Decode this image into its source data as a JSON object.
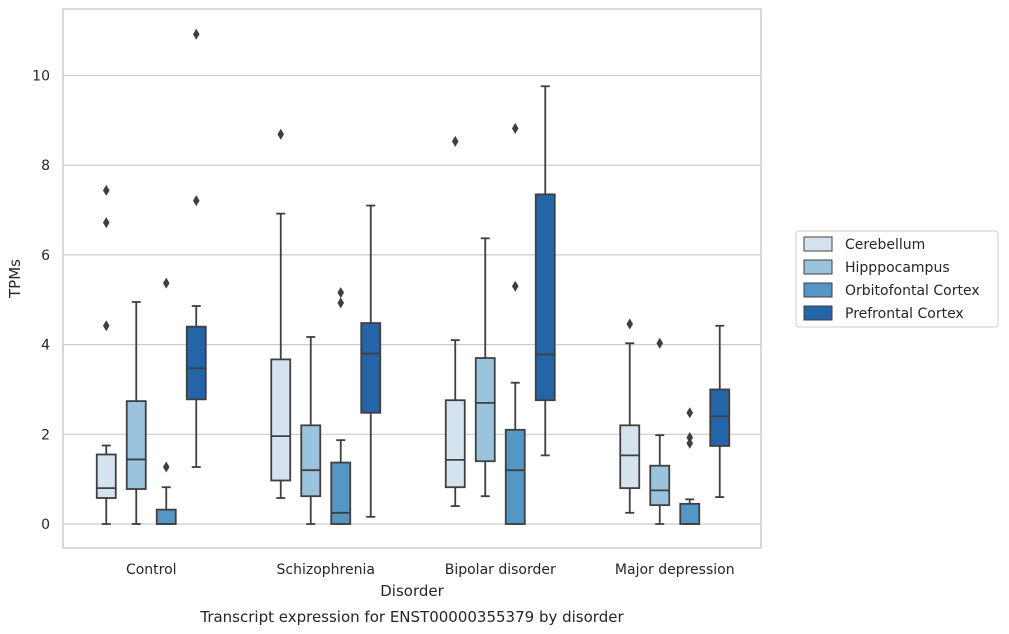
{
  "chart_data": {
    "type": "boxplot",
    "title": "Transcript expression for ENST00000355379 by disorder",
    "xlabel": "Disorder",
    "ylabel": "TPMs",
    "ylim": [
      -0.55,
      11.45
    ],
    "yticks": [
      0,
      2,
      4,
      6,
      8,
      10
    ],
    "grid": "horizontal",
    "legend_position": "center-right",
    "categories": [
      "Control",
      "Schizophrenia",
      "Bipolar disorder",
      "Major depression"
    ],
    "series": [
      {
        "name": "Cerebellum",
        "color": "#d5e3f1",
        "boxes": [
          {
            "whislo": 0.0,
            "q1": 0.58,
            "med": 0.8,
            "q3": 1.55,
            "whishi": 1.75,
            "fliers": [
              4.42,
              6.72,
              7.44
            ]
          },
          {
            "whislo": 0.58,
            "q1": 0.97,
            "med": 1.96,
            "q3": 3.67,
            "whishi": 6.92,
            "fliers": [
              8.69
            ]
          },
          {
            "whislo": 0.4,
            "q1": 0.82,
            "med": 1.43,
            "q3": 2.76,
            "whishi": 4.1,
            "fliers": [
              8.53
            ]
          },
          {
            "whislo": 0.25,
            "q1": 0.8,
            "med": 1.53,
            "q3": 2.2,
            "whishi": 4.03,
            "fliers": [
              4.46
            ]
          }
        ]
      },
      {
        "name": "Hipppocampus",
        "color": "#9ac3dd",
        "boxes": [
          {
            "whislo": 0.0,
            "q1": 0.78,
            "med": 1.44,
            "q3": 2.74,
            "whishi": 4.95,
            "fliers": []
          },
          {
            "whislo": 0.0,
            "q1": 0.62,
            "med": 1.2,
            "q3": 2.2,
            "whishi": 4.17,
            "fliers": []
          },
          {
            "whislo": 0.62,
            "q1": 1.4,
            "med": 2.7,
            "q3": 3.7,
            "whishi": 6.37,
            "fliers": []
          },
          {
            "whislo": 0.0,
            "q1": 0.42,
            "med": 0.75,
            "q3": 1.3,
            "whishi": 1.98,
            "fliers": [
              4.03
            ]
          }
        ]
      },
      {
        "name": "Orbitofontal Cortex",
        "color": "#5497c5",
        "boxes": [
          {
            "whislo": 0.0,
            "q1": 0.0,
            "med": 0.0,
            "q3": 0.32,
            "whishi": 0.82,
            "fliers": [
              1.27,
              5.37
            ]
          },
          {
            "whislo": 0.0,
            "q1": 0.0,
            "med": 0.25,
            "q3": 1.37,
            "whishi": 1.87,
            "fliers": [
              4.93,
              5.16
            ]
          },
          {
            "whislo": 0.0,
            "q1": 0.0,
            "med": 1.2,
            "q3": 2.1,
            "whishi": 3.15,
            "fliers": [
              5.3,
              8.82
            ]
          },
          {
            "whislo": 0.0,
            "q1": 0.0,
            "med": 0.0,
            "q3": 0.45,
            "whishi": 0.55,
            "fliers": [
              1.8,
              1.93,
              2.48
            ]
          }
        ]
      },
      {
        "name": "Prefrontal Cortex",
        "color": "#2464a9",
        "boxes": [
          {
            "whislo": 1.27,
            "q1": 2.78,
            "med": 3.47,
            "q3": 4.4,
            "whishi": 4.86,
            "fliers": [
              7.21,
              10.92
            ]
          },
          {
            "whislo": 0.16,
            "q1": 2.48,
            "med": 3.8,
            "q3": 4.48,
            "whishi": 7.1,
            "fliers": []
          },
          {
            "whislo": 1.53,
            "q1": 2.76,
            "med": 3.78,
            "q3": 7.35,
            "whishi": 9.76,
            "fliers": []
          },
          {
            "whislo": 0.6,
            "q1": 1.74,
            "med": 2.4,
            "q3": 3.0,
            "whishi": 4.42,
            "fliers": []
          }
        ]
      }
    ]
  }
}
